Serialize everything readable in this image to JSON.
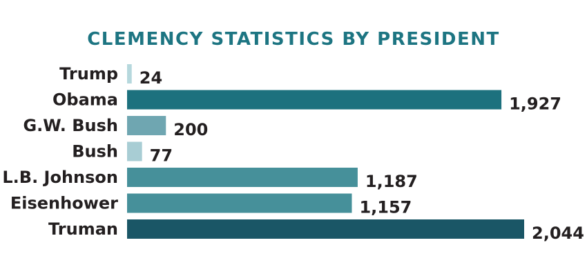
{
  "chart_data": {
    "type": "bar",
    "orientation": "horizontal",
    "title": "CLEMENCY STATISTICS BY PRESIDENT",
    "categories": [
      "Trump",
      "Obama",
      "G.W. Bush",
      "Bush",
      "L.B. Johnson",
      "Eisenhower",
      "Truman"
    ],
    "values": [
      24,
      1927,
      200,
      77,
      1187,
      1157,
      2044
    ],
    "value_labels": [
      "24",
      "1,927",
      "200",
      "77",
      "1,187",
      "1,157",
      "2,044"
    ],
    "bar_colors": [
      "#b6d8dd",
      "#1d717e",
      "#6fa6b1",
      "#a8cdd4",
      "#46909a",
      "#46909a",
      "#1a5666"
    ],
    "xlim": [
      0,
      2044
    ],
    "grid": false,
    "legend": "none"
  },
  "colors": {
    "title": "#1d7582",
    "label_text": "#231f20"
  }
}
